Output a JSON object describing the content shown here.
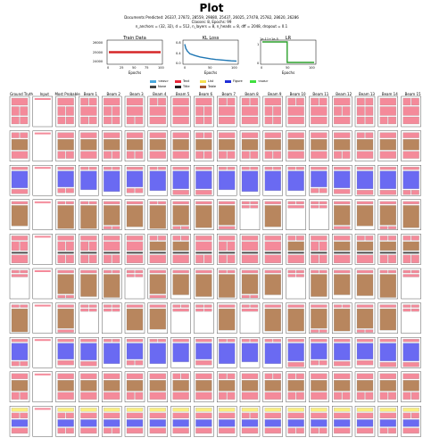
{
  "figure": {
    "title": "Plot",
    "info_lines": [
      "Documents Predicted: 26337, 27872, 28559, 29880, 25437, 26025, 27478, 25782, 28620, 26286",
      "Classes: 8, Epochs: 99",
      "n_anchors = (32, 32), d = 512, n_layers = 8, n_heads = 8, dff = 2048, dropout = 0.1"
    ]
  },
  "chart_data": [
    {
      "type": "line",
      "title": "Train Data",
      "xlabel": "Epochs",
      "xlim": [
        0,
        100
      ],
      "ylim": [
        24000,
        26000
      ],
      "yticks": [
        "26000",
        "25000",
        "24000"
      ],
      "xticks": [
        "0",
        "25",
        "50",
        "75",
        "100"
      ],
      "series": [
        {
          "color": "#d62728",
          "x": [
            0,
            100
          ],
          "y": [
            25000,
            25000
          ]
        }
      ]
    },
    {
      "type": "line",
      "title": "KL Loss",
      "xlabel": "Epochs",
      "xlim": [
        0,
        100
      ],
      "ylim": [
        0.0,
        0.9
      ],
      "yticks": [
        "0.8",
        "0.4",
        "0.0"
      ],
      "xticks": [
        "0",
        "50",
        "100"
      ],
      "series": [
        {
          "color": "#1f77b4",
          "x": [
            0,
            2,
            5,
            10,
            20,
            30,
            40,
            50,
            60,
            70,
            80,
            90,
            100
          ],
          "y": [
            0.8,
            0.62,
            0.5,
            0.38,
            0.3,
            0.24,
            0.2,
            0.16,
            0.13,
            0.11,
            0.09,
            0.07,
            0.06
          ]
        }
      ]
    },
    {
      "type": "line",
      "title": "LR",
      "offset_label": "1e-11+1e-5",
      "xlabel": "Epochs",
      "xlim": [
        0,
        100
      ],
      "xticks": [
        "0",
        "50",
        "100"
      ],
      "yticks": [
        "1",
        "0"
      ],
      "series": [
        {
          "color": "#2ca02c",
          "x": [
            0,
            48,
            48,
            100
          ],
          "y": [
            1,
            1,
            0,
            0
          ]
        }
      ]
    }
  ],
  "legend": [
    {
      "label": "<eos>",
      "color": "#4aa8dd"
    },
    {
      "label": "Text",
      "color": "#e8283a"
    },
    {
      "label": "List",
      "color": "#f5e050"
    },
    {
      "label": "Figure",
      "color": "#1f2ed8"
    },
    {
      "label": "<sos>",
      "color": "#3fe03f"
    },
    {
      "label": "None",
      "color": "#444444"
    },
    {
      "label": "Title",
      "color": "#222222"
    },
    {
      "label": "Table",
      "color": "#a0522d"
    }
  ],
  "columns": [
    "Ground Truth",
    "Input",
    "Most Probable",
    "Beam 1",
    "Beam 2",
    "Beam 3",
    "Beam 4",
    "Beam 5",
    "Beam 6",
    "Beam 7",
    "Beam 8",
    "Beam 9",
    "Beam 10",
    "Beam 11",
    "Beam 12",
    "Beam 13",
    "Beam 14",
    "Beam 15"
  ],
  "colors": {
    "text": "#f48a9a",
    "table": "#b8865e",
    "figure": "#6a6af2",
    "list": "#faee80",
    "title": "#555555",
    "eos": "#5fc8e8",
    "sos": "#3fe03f"
  },
  "row_styles": [
    "textheavy",
    "tabletext",
    "figure",
    "tableonly",
    "mixed",
    "table",
    "table",
    "figure",
    "tabletext",
    "figurelist"
  ]
}
